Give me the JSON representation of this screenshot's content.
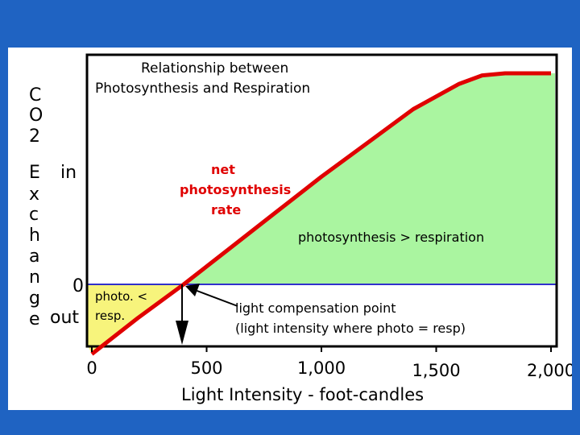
{
  "chart_data": {
    "type": "line",
    "title_lines": [
      "Relationship between",
      "Photosynthesis and Respiration"
    ],
    "ylabel_chars": [
      "C",
      "O",
      "2",
      "E",
      "x",
      "c",
      "h",
      "a",
      "n",
      "g",
      "e"
    ],
    "y_markers": {
      "in": "in",
      "zero": "0",
      "out": "out"
    },
    "xlabel": "Light Intensity - foot-candles",
    "x_ticks": [
      {
        "value": 0,
        "label": "0"
      },
      {
        "value": 500,
        "label": "500"
      },
      {
        "value": 1000,
        "label": "1,000"
      },
      {
        "value": 1500,
        "label": "1,500"
      },
      {
        "value": 2000,
        "label": "2,000"
      }
    ],
    "xlim": [
      0,
      2000
    ],
    "series": [
      {
        "name": "net photosynthesis rate",
        "color": "#e00000",
        "x": [
          0,
          200,
          400,
          600,
          800,
          1000,
          1200,
          1400,
          1600,
          1700,
          1800,
          1900,
          2000
        ],
        "y": [
          -0.33,
          -0.16,
          0.0,
          0.17,
          0.34,
          0.51,
          0.67,
          0.83,
          0.95,
          0.99,
          1.0,
          1.0,
          1.0
        ]
      }
    ],
    "compensation_point_x": 400,
    "annotations": {
      "curve_label_lines": [
        "net",
        "photosynthesis",
        "rate"
      ],
      "green_region": "photosynthesis > respiration",
      "yellow_region_lines": [
        "photo. <",
        "resp."
      ],
      "compensation_lines": [
        "light compensation point",
        "(light intensity where photo = resp)"
      ]
    },
    "colors": {
      "green_region": "#aaf5a0",
      "yellow_region": "#f7f47c",
      "zero_line": "#3030cc",
      "curve": "#e00000",
      "background": "#1f63c2"
    }
  }
}
